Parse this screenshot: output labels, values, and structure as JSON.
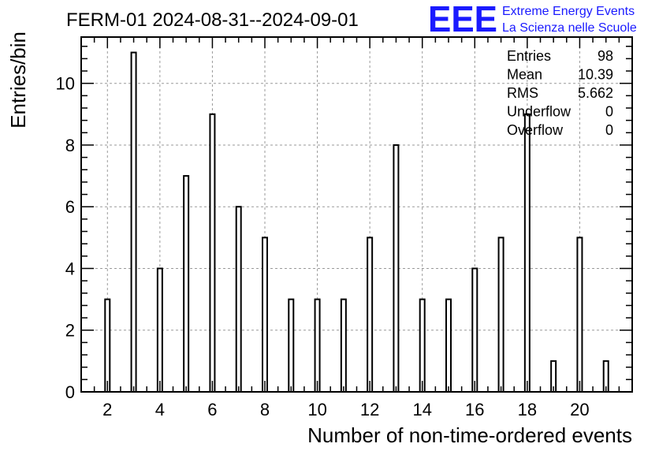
{
  "chart_data": {
    "type": "bar",
    "title": "FERM-01 2024-08-31--2024-09-01",
    "xlabel": "Number of non-time-ordered events",
    "ylabel": "Entries/bin",
    "xlim": [
      1,
      22
    ],
    "ylim": [
      0,
      11.5
    ],
    "x_ticks": [
      2,
      4,
      6,
      8,
      10,
      12,
      14,
      16,
      18,
      20
    ],
    "y_ticks": [
      0,
      2,
      4,
      6,
      8,
      10
    ],
    "grid": true,
    "x": [
      2,
      3,
      4,
      5,
      6,
      7,
      8,
      9,
      10,
      11,
      12,
      13,
      14,
      15,
      16,
      17,
      18,
      19,
      20,
      21
    ],
    "values": [
      3,
      11,
      4,
      7,
      9,
      6,
      5,
      3,
      3,
      3,
      5,
      8,
      3,
      3,
      4,
      5,
      9,
      1,
      5,
      1
    ]
  },
  "stats": [
    {
      "label": "Entries",
      "value": "98"
    },
    {
      "label": "Mean",
      "value": "10.39"
    },
    {
      "label": "RMS",
      "value": "5.662"
    },
    {
      "label": "Underflow",
      "value": "0"
    },
    {
      "label": "Overflow",
      "value": "0"
    }
  ],
  "logo": {
    "mark": "EEE",
    "line1": "Extreme Energy Events",
    "line2": "La Scienza nelle Scuole",
    "color": "#1a1aff"
  }
}
